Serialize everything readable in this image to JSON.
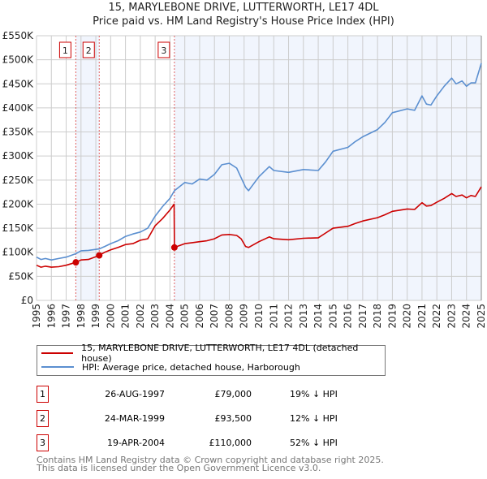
{
  "chart_data": {
    "type": "line",
    "title": "15, MARYLEBONE DRIVE, LUTTERWORTH, LE17 4DL",
    "subtitle": "Price paid vs. HM Land Registry's House Price Index (HPI)",
    "xlim": [
      1995,
      2025
    ],
    "ylim": [
      0,
      550000
    ],
    "x_ticks": [
      "1995",
      "1996",
      "1997",
      "1998",
      "1999",
      "2000",
      "2001",
      "2002",
      "2003",
      "2004",
      "2005",
      "2006",
      "2007",
      "2008",
      "2009",
      "2010",
      "2011",
      "2012",
      "2013",
      "2014",
      "2015",
      "2016",
      "2017",
      "2018",
      "2019",
      "2020",
      "2021",
      "2022",
      "2023",
      "2024",
      "2025"
    ],
    "y_ticks": [
      {
        "v": 0,
        "label": "£0"
      },
      {
        "v": 50000,
        "label": "£50K"
      },
      {
        "v": 100000,
        "label": "£100K"
      },
      {
        "v": 150000,
        "label": "£150K"
      },
      {
        "v": 200000,
        "label": "£200K"
      },
      {
        "v": 250000,
        "label": "£250K"
      },
      {
        "v": 300000,
        "label": "£300K"
      },
      {
        "v": 350000,
        "label": "£350K"
      },
      {
        "v": 400000,
        "label": "£400K"
      },
      {
        "v": 450000,
        "label": "£450K"
      },
      {
        "v": 500000,
        "label": "£500K"
      },
      {
        "v": 550000,
        "label": "£550K"
      }
    ],
    "grid": true,
    "shaded_ranges": [
      [
        1997.65,
        1999.23
      ],
      [
        2004.3,
        2025
      ]
    ],
    "series": [
      {
        "name": "15, MARYLEBONE DRIVE, LUTTERWORTH, LE17 4DL (detached house)",
        "color": "#cc0000",
        "x": [
          1995,
          1995.3,
          1995.6,
          1996,
          1996.5,
          1997,
          1997.65,
          1998,
          1998.5,
          1999.23,
          1999.6,
          2000,
          2000.5,
          2001,
          2001.5,
          2002,
          2002.5,
          2003,
          2003.5,
          2004,
          2004.28,
          2004.3,
          2005,
          2005.5,
          2006,
          2006.5,
          2007,
          2007.5,
          2008,
          2008.5,
          2008.8,
          2009.1,
          2009.3,
          2010,
          2010.7,
          2011,
          2012,
          2013,
          2014,
          2014.5,
          2015,
          2016,
          2016.5,
          2017,
          2018,
          2018.5,
          2019,
          2020,
          2020.5,
          2021,
          2021.3,
          2021.6,
          2022,
          2022.5,
          2023,
          2023.3,
          2023.7,
          2024,
          2024.3,
          2024.6,
          2025
        ],
        "y": [
          73000,
          69000,
          71000,
          69000,
          70000,
          73000,
          79000,
          84000,
          85000,
          93500,
          100000,
          105000,
          110000,
          116000,
          118000,
          125000,
          128000,
          155000,
          170000,
          188000,
          200000,
          110000,
          118000,
          120000,
          122000,
          124000,
          128000,
          136000,
          137000,
          135000,
          128000,
          112000,
          110000,
          122000,
          132000,
          128000,
          126000,
          129000,
          130000,
          140000,
          150000,
          154000,
          160000,
          165000,
          172000,
          178000,
          185000,
          190000,
          189000,
          203000,
          196000,
          197000,
          204000,
          212000,
          222000,
          216000,
          219000,
          213000,
          218000,
          216000,
          236000
        ]
      },
      {
        "name": "HPI: Average price, detached house, Harborough",
        "color": "#5b8fd0",
        "x": [
          1995,
          1995.3,
          1995.6,
          1996,
          1996.5,
          1997,
          1997.65,
          1998,
          1998.5,
          1999.23,
          1999.6,
          2000,
          2000.5,
          2001,
          2001.5,
          2002,
          2002.5,
          2003,
          2003.5,
          2004,
          2004.3,
          2005,
          2005.5,
          2006,
          2006.5,
          2007,
          2007.5,
          2008,
          2008.5,
          2008.8,
          2009.1,
          2009.3,
          2010,
          2010.7,
          2011,
          2012,
          2013,
          2014,
          2014.5,
          2015,
          2016,
          2016.5,
          2017,
          2018,
          2018.5,
          2019,
          2020,
          2020.5,
          2021,
          2021.3,
          2021.6,
          2022,
          2022.5,
          2023,
          2023.3,
          2023.7,
          2024,
          2024.3,
          2024.6,
          2025
        ],
        "y": [
          90000,
          85000,
          87000,
          84000,
          87000,
          90000,
          97000,
          103000,
          104000,
          107000,
          112000,
          118000,
          124000,
          133000,
          138000,
          142000,
          150000,
          175000,
          195000,
          212000,
          228000,
          245000,
          242000,
          252000,
          250000,
          262000,
          282000,
          285000,
          275000,
          255000,
          235000,
          228000,
          257000,
          278000,
          270000,
          266000,
          272000,
          270000,
          288000,
          310000,
          318000,
          330000,
          340000,
          355000,
          370000,
          390000,
          398000,
          395000,
          425000,
          408000,
          406000,
          425000,
          445000,
          462000,
          450000,
          456000,
          445000,
          452000,
          452000,
          493000
        ]
      }
    ],
    "sales": [
      {
        "n": "1",
        "x": 1997.65,
        "price": 79000
      },
      {
        "n": "2",
        "x": 1999.23,
        "price": 93500
      },
      {
        "n": "3",
        "x": 2004.3,
        "price": 110000
      }
    ]
  },
  "legend": {
    "property": "15, MARYLEBONE DRIVE, LUTTERWORTH, LE17 4DL (detached house)",
    "hpi": "HPI: Average price, detached house, Harborough"
  },
  "transactions": [
    {
      "n": "1",
      "date": "26-AUG-1997",
      "price": "£79,000",
      "hpi": "19% ↓ HPI"
    },
    {
      "n": "2",
      "date": "24-MAR-1999",
      "price": "£93,500",
      "hpi": "12% ↓ HPI"
    },
    {
      "n": "3",
      "date": "19-APR-2004",
      "price": "£110,000",
      "hpi": "52% ↓ HPI"
    }
  ],
  "footer": {
    "line1": "Contains HM Land Registry data © Crown copyright and database right 2025.",
    "line2": "This data is licensed under the Open Government Licence v3.0."
  }
}
